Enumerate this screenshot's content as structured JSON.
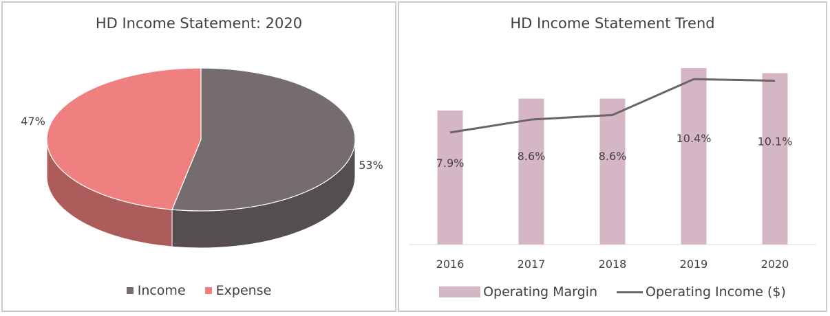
{
  "chart_data": [
    {
      "type": "pie",
      "title": "HD Income Statement: 2020",
      "categories": [
        "Income",
        "Expense"
      ],
      "values": [
        53,
        47
      ],
      "labels": [
        "53%",
        "47%"
      ],
      "colors": [
        "#756d6d",
        "#f08080"
      ],
      "legend": "bottom",
      "three_d": true
    },
    {
      "type": "bar",
      "title": "HD Income Statement Trend",
      "categories": [
        "2016",
        "2017",
        "2018",
        "2019",
        "2020"
      ],
      "series": [
        {
          "name": "Operating Margin",
          "type": "bar",
          "values": [
            7.9,
            8.6,
            8.6,
            10.4,
            10.1
          ],
          "labels": [
            "7.9%",
            "8.6%",
            "8.6%",
            "10.4%",
            "10.1%"
          ],
          "color": "#d5b6c5"
        },
        {
          "name": "Operating Income ($)",
          "type": "line",
          "values": [
            14.7,
            16.4,
            17.0,
            21.7,
            21.5
          ],
          "color": "#6b6565"
        }
      ],
      "ylim": [
        0,
        11.9
      ],
      "legend": "bottom",
      "grid": false
    }
  ]
}
